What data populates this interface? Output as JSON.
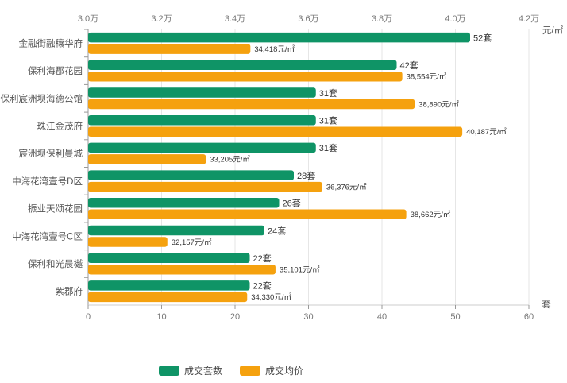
{
  "chart_data": {
    "type": "bar",
    "orientation": "horizontal",
    "categories": [
      "金融街融穰华府",
      "保利海郡花园",
      "保利宸洲坝海德公馆",
      "珠江金茂府",
      "宸洲坝保利曼城",
      "中海花湾壹号D区",
      "振业天颂花园",
      "中海花湾壹号C区",
      "保利和光晨樾",
      "紫郡府"
    ],
    "series": [
      {
        "name": "成交套数",
        "axis": "bottom",
        "color": "#0f9466",
        "values": [
          52,
          42,
          31,
          31,
          31,
          28,
          26,
          24,
          22,
          22
        ],
        "labels": [
          "52套",
          "42套",
          "31套",
          "31套",
          "31套",
          "28套",
          "26套",
          "24套",
          "22套",
          "22套"
        ]
      },
      {
        "name": "成交均价",
        "axis": "top",
        "color": "#f5a10e",
        "values": [
          34418,
          38554,
          38890,
          40187,
          33205,
          36376,
          38662,
          32157,
          35101,
          34330
        ],
        "labels": [
          "34,418元/㎡",
          "38,554元/㎡",
          "38,890元/㎡",
          "40,187元/㎡",
          "33,205元/㎡",
          "36,376元/㎡",
          "38,662元/㎡",
          "32,157元/㎡",
          "35,101元/㎡",
          "34,330元/㎡"
        ]
      }
    ],
    "x_bottom": {
      "min": 0,
      "max": 60,
      "ticks": [
        0,
        10,
        20,
        30,
        40,
        50,
        60
      ],
      "tick_labels": [
        "0",
        "10",
        "20",
        "30",
        "40",
        "50",
        "60"
      ],
      "unit": "套"
    },
    "x_top": {
      "min": 30000,
      "max": 42000,
      "ticks": [
        30000,
        32000,
        34000,
        36000,
        38000,
        40000,
        42000
      ],
      "tick_labels": [
        "3.0万",
        "3.2万",
        "3.4万",
        "3.6万",
        "3.8万",
        "4.0万",
        "4.2万"
      ],
      "unit": "元/㎡"
    },
    "grid": true,
    "legend_position": "bottom-left"
  }
}
